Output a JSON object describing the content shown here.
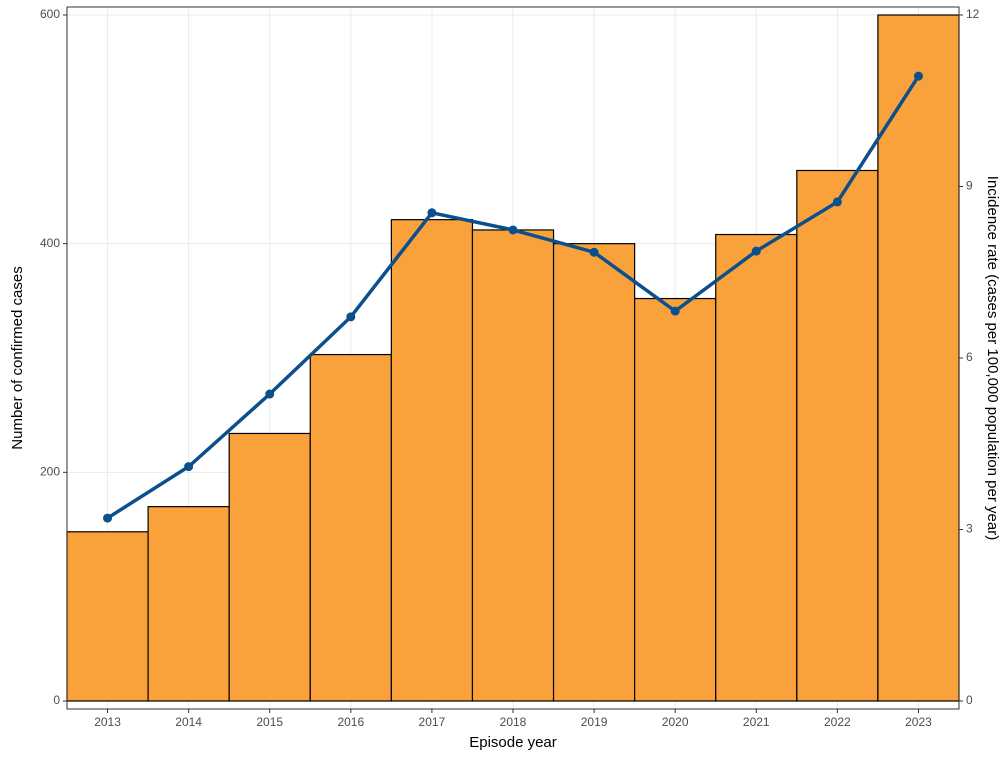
{
  "chart_data": {
    "type": "bar_line",
    "x_label": "Episode year",
    "y_label": "Number of confirmed cases",
    "y2_label": "Incidence rate (cases per 100,000 population per year)",
    "categories": [
      "2013",
      "2014",
      "2015",
      "2016",
      "2017",
      "2018",
      "2019",
      "2020",
      "2021",
      "2022",
      "2023"
    ],
    "series": [
      {
        "type": "bar",
        "color": "#f9a23b",
        "values": [
          148,
          170,
          234,
          303,
          421,
          412,
          400,
          352,
          408,
          464,
          600
        ]
      },
      {
        "type": "line",
        "axis": "y2",
        "color": "#0b4f8c",
        "values": [
          3.2,
          4.1,
          5.37,
          6.72,
          8.54,
          8.24,
          7.85,
          6.82,
          7.87,
          8.73,
          10.93
        ]
      }
    ],
    "ylim": [
      0,
      600
    ],
    "yticks": [
      0,
      200,
      400,
      600
    ],
    "y2lim": [
      0,
      12
    ],
    "y2ticks": [
      0,
      3,
      6,
      9,
      12
    ],
    "grid": true
  }
}
